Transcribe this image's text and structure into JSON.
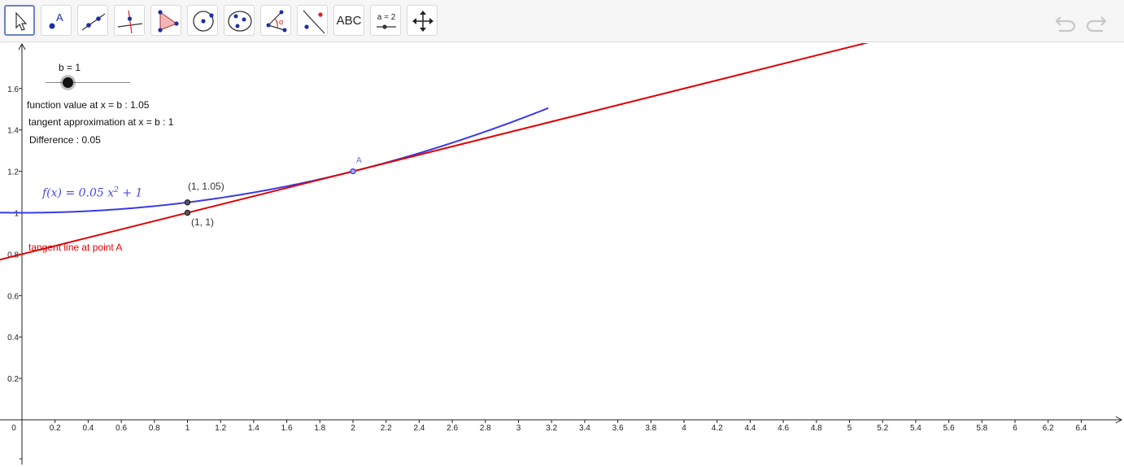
{
  "toolbar": {
    "tools": [
      {
        "name": "move-tool",
        "icon": "cursor-arrow-icon",
        "selected": true
      },
      {
        "name": "point-tool",
        "icon": "point-icon",
        "label": "A"
      },
      {
        "name": "line-tool",
        "icon": "line-through-points-icon"
      },
      {
        "name": "perpendicular-line-tool",
        "icon": "perpendicular-icon"
      },
      {
        "name": "polygon-tool",
        "icon": "polygon-icon"
      },
      {
        "name": "circle-center-point-tool",
        "icon": "circle-center-icon"
      },
      {
        "name": "conic-tool",
        "icon": "ellipse-icon"
      },
      {
        "name": "angle-tool",
        "icon": "angle-icon",
        "label": "α"
      },
      {
        "name": "reflect-tool",
        "icon": "reflect-icon"
      },
      {
        "name": "text-tool",
        "icon": "text-icon",
        "label": "ABC"
      },
      {
        "name": "slider-tool",
        "icon": "slider-icon",
        "label": "a = 2"
      },
      {
        "name": "move-graphics-view-tool",
        "icon": "move-arrows-icon"
      }
    ],
    "undo_icon": "undo-icon",
    "redo_icon": "redo-icon"
  },
  "slider": {
    "label": "b = 1",
    "value": 1
  },
  "info": {
    "function_value": "function value at x = b : 1.05",
    "tangent_approx": "tangent approximation at x = b : 1",
    "difference": "Difference : 0.05"
  },
  "function_label": {
    "prefix": "f(x)  =  0.05 x",
    "exponent": "2",
    "suffix": " + 1"
  },
  "tangent_label": "tangent line at point A",
  "points": {
    "A_label": "A",
    "p1_label": "(1, 1.05)",
    "p2_label": "(1, 1)"
  },
  "colors": {
    "function": "#3a3ae6",
    "tangent": "#e00000",
    "toolbar_selected": "#6e82c8"
  },
  "axes": {
    "x_ticks": [
      "0",
      "0.2",
      "0.4",
      "0.6",
      "0.8",
      "1",
      "1.2",
      "1.4",
      "1.6",
      "1.8",
      "2",
      "2.2",
      "2.4",
      "2.6",
      "2.8",
      "3",
      "3.2",
      "3.4",
      "3.6",
      "3.8",
      "4",
      "4.2",
      "4.4",
      "4.6",
      "4.8",
      "5",
      "5.2",
      "5.4",
      "5.6",
      "5.8",
      "6",
      "6.2",
      "6.4"
    ],
    "y_ticks": [
      "0.2",
      "0.4",
      "0.6",
      "0.8",
      "1",
      "1.2",
      "1.4",
      "1.6"
    ]
  }
}
